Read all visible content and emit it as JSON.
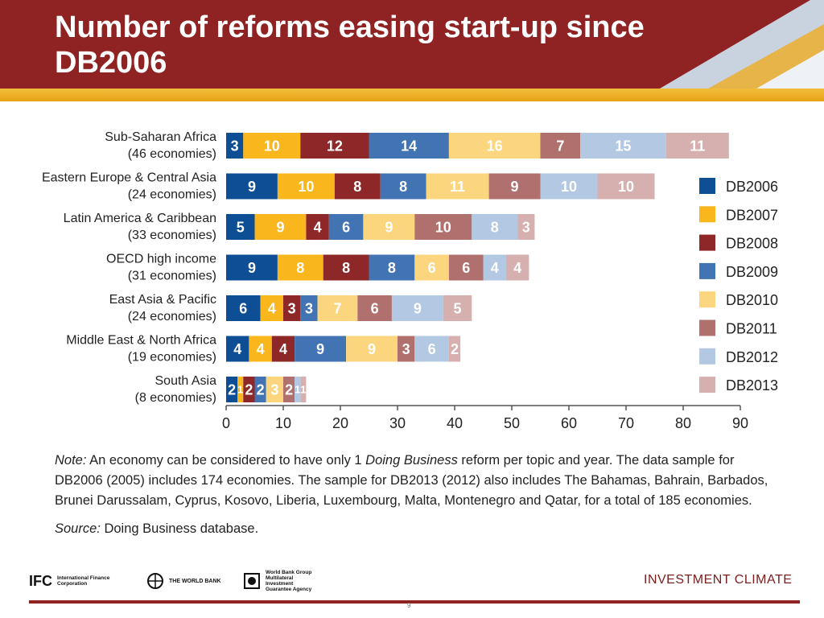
{
  "header": {
    "title": "Number of reforms easing start-up  since DB2006"
  },
  "chart_data": {
    "type": "bar",
    "orientation": "horizontal",
    "stacked": true,
    "categories": [
      "Sub-Saharan Africa\n(46 economies)",
      "Eastern Europe & Central Asia\n(24 economies)",
      "Latin America & Caribbean\n(33 economies)",
      "OECD high income\n(31 economies)",
      "East Asia & Pacific\n(24 economies)",
      "Middle East & North Africa\n(19 economies)",
      "South Asia\n(8 economies)"
    ],
    "series": [
      {
        "name": "DB2006",
        "color": "#0d4e94",
        "label_color": "#ffffff",
        "values": [
          3,
          9,
          5,
          9,
          6,
          4,
          2
        ]
      },
      {
        "name": "DB2007",
        "color": "#f9b61d",
        "label_color": "#ffffff",
        "values": [
          10,
          10,
          9,
          8,
          4,
          4,
          1
        ]
      },
      {
        "name": "DB2008",
        "color": "#8e2727",
        "label_color": "#ffffff",
        "values": [
          12,
          8,
          4,
          8,
          3,
          4,
          2
        ]
      },
      {
        "name": "DB2009",
        "color": "#4273b3",
        "label_color": "#ffffff",
        "values": [
          14,
          8,
          6,
          8,
          3,
          9,
          2
        ]
      },
      {
        "name": "DB2010",
        "color": "#fbd67f",
        "label_color": "#ffffff",
        "values": [
          16,
          11,
          9,
          6,
          7,
          9,
          3
        ]
      },
      {
        "name": "DB2011",
        "color": "#b0706e",
        "label_color": "#ffffff",
        "values": [
          7,
          9,
          10,
          6,
          6,
          3,
          2
        ]
      },
      {
        "name": "DB2012",
        "color": "#b3c8e3",
        "label_color": "#ffffff",
        "values": [
          15,
          10,
          8,
          4,
          9,
          6,
          1
        ]
      },
      {
        "name": "DB2013",
        "color": "#d6b0ae",
        "label_color": "#ffffff",
        "values": [
          11,
          10,
          3,
          4,
          5,
          2,
          1
        ]
      }
    ],
    "xlim": [
      0,
      90
    ],
    "xticks": [
      0,
      10,
      20,
      30,
      40,
      50,
      60,
      70,
      80,
      90
    ],
    "legend": "right",
    "grid": false
  },
  "note": {
    "lead": "Note:",
    "text_1": " An economy can be considered to have only 1 ",
    "italic_term": "Doing Business",
    "text_2": " reform per topic and year. The data sample for DB2006 (2005) includes 174 economies. The sample for DB2013 (2012) also includes The Bahamas, Bahrain, Barbados, Brunei Darussalam, Cyprus, Kosovo, Liberia, Luxembourg, Malta, Montenegro and Qatar, for a total of 185 economies.",
    "source_lead": "Source:",
    "source_italic": " Doing Business",
    "source_text": " database."
  },
  "footer": {
    "ifc_mark": "IFC",
    "ifc_text": "International Finance Corporation",
    "wb_text": "THE WORLD BANK",
    "miga_text": "World Bank Group Multilateral Investment Guarantee Agency",
    "brand": "INVESTMENT CLIMATE",
    "slide_number": "9"
  }
}
